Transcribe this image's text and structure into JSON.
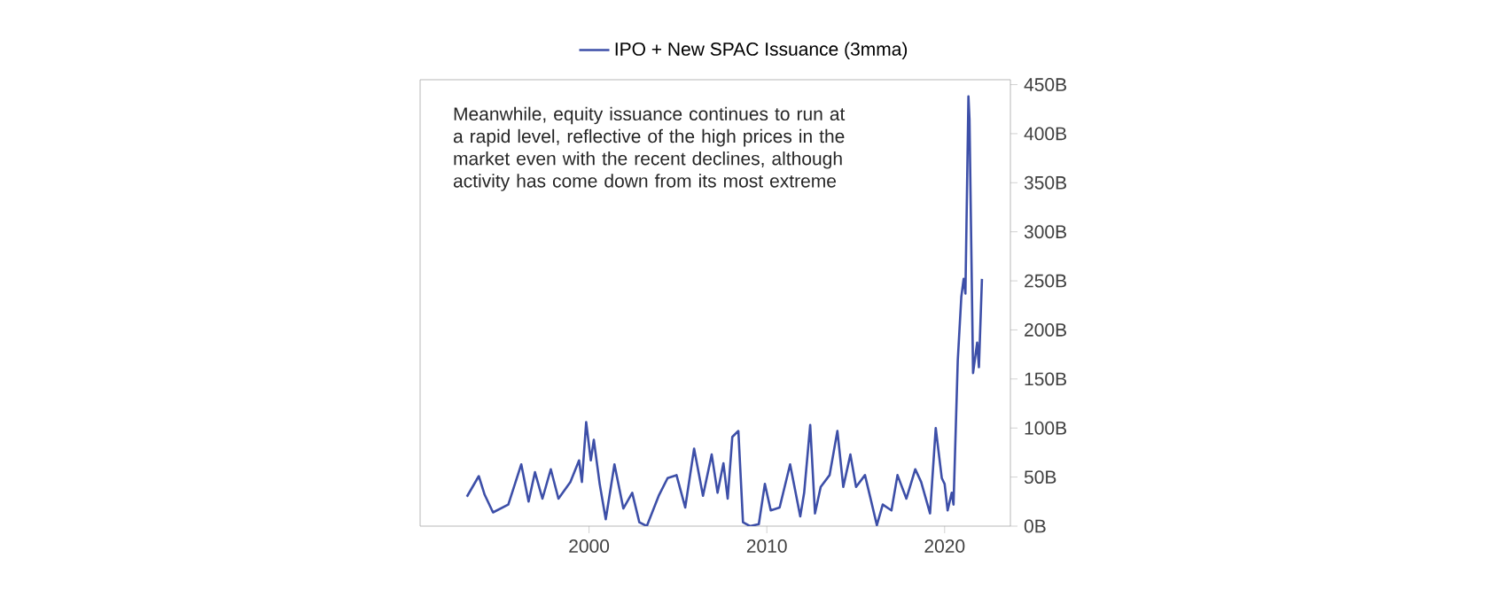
{
  "chart_data": {
    "type": "line",
    "annotations": [
      "Meanwhile, equity issuance continues to run at a rapid level, reflective of the high prices in the market even with the recent declines, although activity has come down from its most extreme"
    ],
    "x": [
      1993.13,
      1993.8,
      1994.13,
      1994.6,
      1995.46,
      1996.19,
      1996.6,
      1996.96,
      1997.38,
      1997.85,
      1998.28,
      1998.95,
      1999.44,
      1999.6,
      1999.84,
      2000.1,
      2000.27,
      2000.6,
      2000.94,
      2001.43,
      2001.93,
      2002.43,
      2002.83,
      2003.25,
      2003.92,
      2004.42,
      2004.92,
      2005.41,
      2005.91,
      2006.41,
      2006.9,
      2007.23,
      2007.56,
      2007.8,
      2008.06,
      2008.4,
      2008.66,
      2009.05,
      2009.55,
      2009.89,
      2010.22,
      2010.72,
      2011.31,
      2011.88,
      2012.1,
      2012.44,
      2012.71,
      2013.03,
      2013.53,
      2013.97,
      2014.3,
      2014.7,
      2015.02,
      2015.52,
      2016.19,
      2016.52,
      2017.01,
      2017.35,
      2017.85,
      2018.35,
      2018.68,
      2019.18,
      2019.5,
      2019.84,
      2020.0,
      2020.17,
      2020.4,
      2020.5,
      2020.74,
      2020.94,
      2021.07,
      2021.17,
      2021.34,
      2021.4,
      2021.6,
      2021.83,
      2021.93,
      2022.1
    ],
    "series": [
      {
        "name": "IPO + New SPAC Issuance (3mma)",
        "color": "#3d4fa8",
        "values": [
          30,
          51,
          32,
          14,
          22,
          63,
          25,
          55,
          28,
          58,
          28,
          45,
          67,
          45,
          106,
          67,
          88,
          43,
          7,
          63,
          18,
          34,
          4,
          0,
          31,
          49,
          52,
          19,
          79,
          31,
          73,
          34,
          64,
          28,
          91,
          97,
          4,
          0,
          2,
          43,
          16,
          19,
          63,
          10,
          34,
          103,
          13,
          40,
          52,
          97,
          40,
          73,
          40,
          52,
          1,
          22,
          16,
          52,
          28,
          58,
          45,
          13,
          100,
          49,
          43,
          16,
          34,
          22,
          169,
          234,
          252,
          237,
          438,
          414,
          156,
          187,
          162,
          252
        ]
      }
    ],
    "xlim": [
      1990.5,
      2023.7
    ],
    "ylim": [
      0,
      455
    ],
    "xticks": [
      2000,
      2010,
      2020
    ],
    "yticks": [
      {
        "value": 0,
        "label": "0B"
      },
      {
        "value": 50,
        "label": "50B"
      },
      {
        "value": 100,
        "label": "100B"
      },
      {
        "value": 150,
        "label": "150B"
      },
      {
        "value": 200,
        "label": "200B"
      },
      {
        "value": 250,
        "label": "250B"
      },
      {
        "value": 300,
        "label": "300B"
      },
      {
        "value": 350,
        "label": "350B"
      },
      {
        "value": 400,
        "label": "400B"
      },
      {
        "value": 450,
        "label": "450B"
      }
    ],
    "legend": "top",
    "marker": "none",
    "line_style": "solid"
  }
}
